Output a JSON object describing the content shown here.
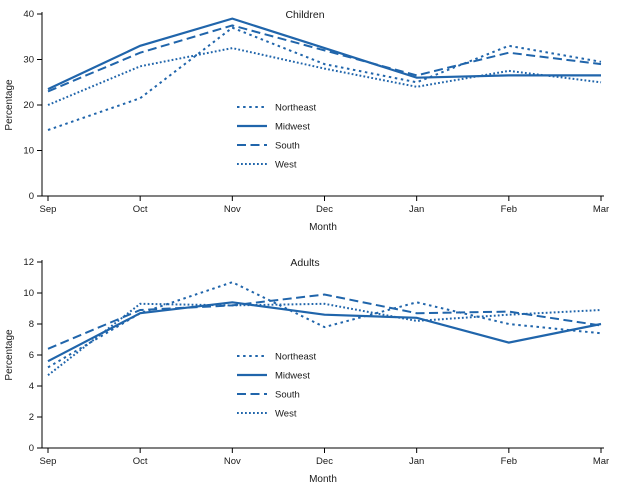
{
  "figure": {
    "accent_color": "#2065AB",
    "text_color": "#1a1a1a"
  },
  "chart_data": [
    {
      "type": "line",
      "title": "Children",
      "xlabel": "Month",
      "ylabel": "Percentage",
      "ylim": [
        0,
        40
      ],
      "yticks": [
        0,
        10,
        20,
        30,
        40
      ],
      "categories": [
        "Sep",
        "Oct",
        "Nov",
        "Dec",
        "Jan",
        "Feb",
        "Mar"
      ],
      "legend_position": "center",
      "series": [
        {
          "name": "Northeast",
          "style": "dotted",
          "values": [
            14.5,
            21.5,
            37.0,
            29.0,
            25.0,
            33.0,
            29.5
          ]
        },
        {
          "name": "Midwest",
          "style": "solid",
          "values": [
            23.5,
            33.0,
            39.0,
            32.5,
            26.0,
            26.5,
            26.5
          ]
        },
        {
          "name": "South",
          "style": "dashed",
          "values": [
            23.0,
            31.5,
            37.5,
            32.0,
            26.5,
            31.5,
            29.0
          ]
        },
        {
          "name": "West",
          "style": "dense-dotted",
          "values": [
            20.0,
            28.5,
            32.5,
            28.0,
            24.0,
            27.5,
            25.0
          ]
        }
      ]
    },
    {
      "type": "line",
      "title": "Adults",
      "xlabel": "Month",
      "ylabel": "Percentage",
      "ylim": [
        0,
        12
      ],
      "yticks": [
        0,
        2,
        4,
        6,
        8,
        10,
        12
      ],
      "categories": [
        "Sep",
        "Oct",
        "Nov",
        "Dec",
        "Jan",
        "Feb",
        "Mar"
      ],
      "legend_position": "center",
      "series": [
        {
          "name": "Northeast",
          "style": "dotted",
          "values": [
            5.2,
            8.7,
            10.7,
            7.8,
            9.4,
            8.0,
            7.4
          ]
        },
        {
          "name": "Midwest",
          "style": "solid",
          "values": [
            5.6,
            8.7,
            9.4,
            8.6,
            8.4,
            6.8,
            8.0
          ]
        },
        {
          "name": "South",
          "style": "dashed",
          "values": [
            6.4,
            8.9,
            9.2,
            9.9,
            8.7,
            8.8,
            7.9
          ]
        },
        {
          "name": "West",
          "style": "dense-dotted",
          "values": [
            4.7,
            9.3,
            9.2,
            9.3,
            8.2,
            8.6,
            8.9
          ]
        }
      ]
    }
  ]
}
